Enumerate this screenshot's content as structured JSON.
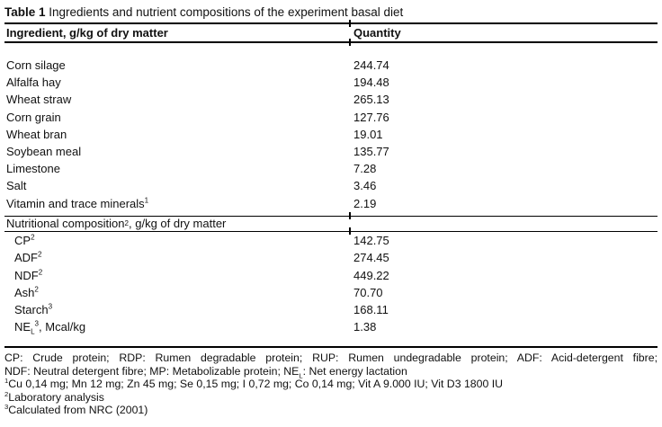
{
  "title": {
    "label_bold": "Table 1",
    "label_rest": " Ingredients and nutrient compositions of the experiment basal diet"
  },
  "header": {
    "ingredient": "Ingredient, g/kg of dry matter",
    "quantity": "Quantity"
  },
  "ingredients": [
    {
      "name": "Corn silage",
      "sup": "",
      "qty": "244.74"
    },
    {
      "name": "Alfalfa hay",
      "sup": "",
      "qty": "194.48"
    },
    {
      "name": "Wheat straw",
      "sup": "",
      "qty": "265.13"
    },
    {
      "name": "Corn grain",
      "sup": "",
      "qty": "127.76"
    },
    {
      "name": "Wheat bran",
      "sup": "",
      "qty": "19.01"
    },
    {
      "name": "Soybean meal",
      "sup": "",
      "qty": "135.77"
    },
    {
      "name": "Limestone",
      "sup": "",
      "qty": "7.28"
    },
    {
      "name": "Salt",
      "sup": "",
      "qty": "3.46"
    },
    {
      "name": "Vitamin and trace minerals",
      "sup": "1",
      "qty": "2.19"
    }
  ],
  "section": {
    "pre": "Nutritional composition",
    "sup": "2",
    "post": ", g/kg of dry matter"
  },
  "nutrients": [
    {
      "name": "CP",
      "sub": "",
      "sup": "2",
      "post": "",
      "qty": "142.75"
    },
    {
      "name": "ADF",
      "sub": "",
      "sup": "2",
      "post": "",
      "qty": "274.45"
    },
    {
      "name": "NDF",
      "sub": "",
      "sup": "2",
      "post": "",
      "qty": "449.22"
    },
    {
      "name": "Ash",
      "sub": "",
      "sup": "2",
      "post": "",
      "qty": "70.70"
    },
    {
      "name": "Starch",
      "sub": "",
      "sup": "3",
      "post": "",
      "qty": "168.11"
    },
    {
      "name": "NE",
      "sub": "L",
      "sup": "3",
      "post": ", Mcal/kg",
      "qty": "1.38"
    }
  ],
  "footnotes": {
    "abbrev_line1": "CP: Crude protein; RDP: Rumen degradable protein; RUP: Rumen undegradable protein; ADF: Acid-detergent fibre;",
    "abbrev_line2": {
      "pre": "NDF: Neutral detergent fibre; MP: Metabolizable protein; NE",
      "sub": "L",
      "post": ": Net energy lactation"
    },
    "fn1": {
      "sup": "1",
      "text": "Cu 0,14 mg; Mn 12 mg; Zn 45 mg; Se 0,15 mg; I 0,72 mg; Co 0,14 mg; Vit A 9.000 IU; Vit D3 1800 IU"
    },
    "fn2": {
      "sup": "2",
      "text": "Laboratory analysis"
    },
    "fn3": {
      "sup": "3",
      "text": "Calculated from NRC (2001)"
    }
  },
  "colors": {
    "text": "#111111",
    "rule": "#000000",
    "background": "#ffffff"
  }
}
